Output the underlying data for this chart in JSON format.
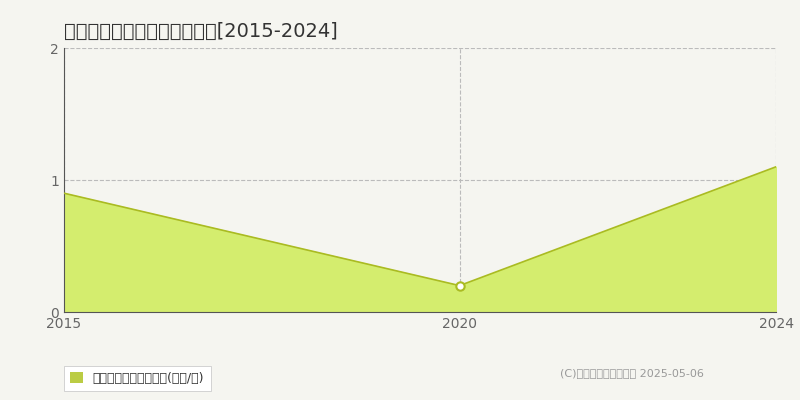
{
  "title": "新発田市米倉　土地価格推移[2015-2024]",
  "years": [
    2015,
    2020,
    2024
  ],
  "values": [
    0.9,
    0.2,
    1.1
  ],
  "line_color": "#aabb22",
  "fill_color": "#d4ed6e",
  "fill_alpha": 1.0,
  "marker_color": "#ffffff",
  "marker_edgecolor": "#aabb22",
  "background_color": "#f5f5f0",
  "plot_bg_color": "#f5f5f0",
  "xlim": [
    2015,
    2024
  ],
  "ylim": [
    0,
    2
  ],
  "yticks": [
    0,
    1,
    2
  ],
  "xticks": [
    2015,
    2020,
    2024
  ],
  "grid_color": "#bbbbbb",
  "grid_style": "--",
  "legend_label": "土地価格　平均坪単価(万円/坪)",
  "legend_marker_color": "#bbcc44",
  "copyright_text": "(C)土地価格ドットコム 2025-05-06",
  "title_fontsize": 14,
  "tick_fontsize": 10,
  "legend_fontsize": 9,
  "copyright_fontsize": 8
}
